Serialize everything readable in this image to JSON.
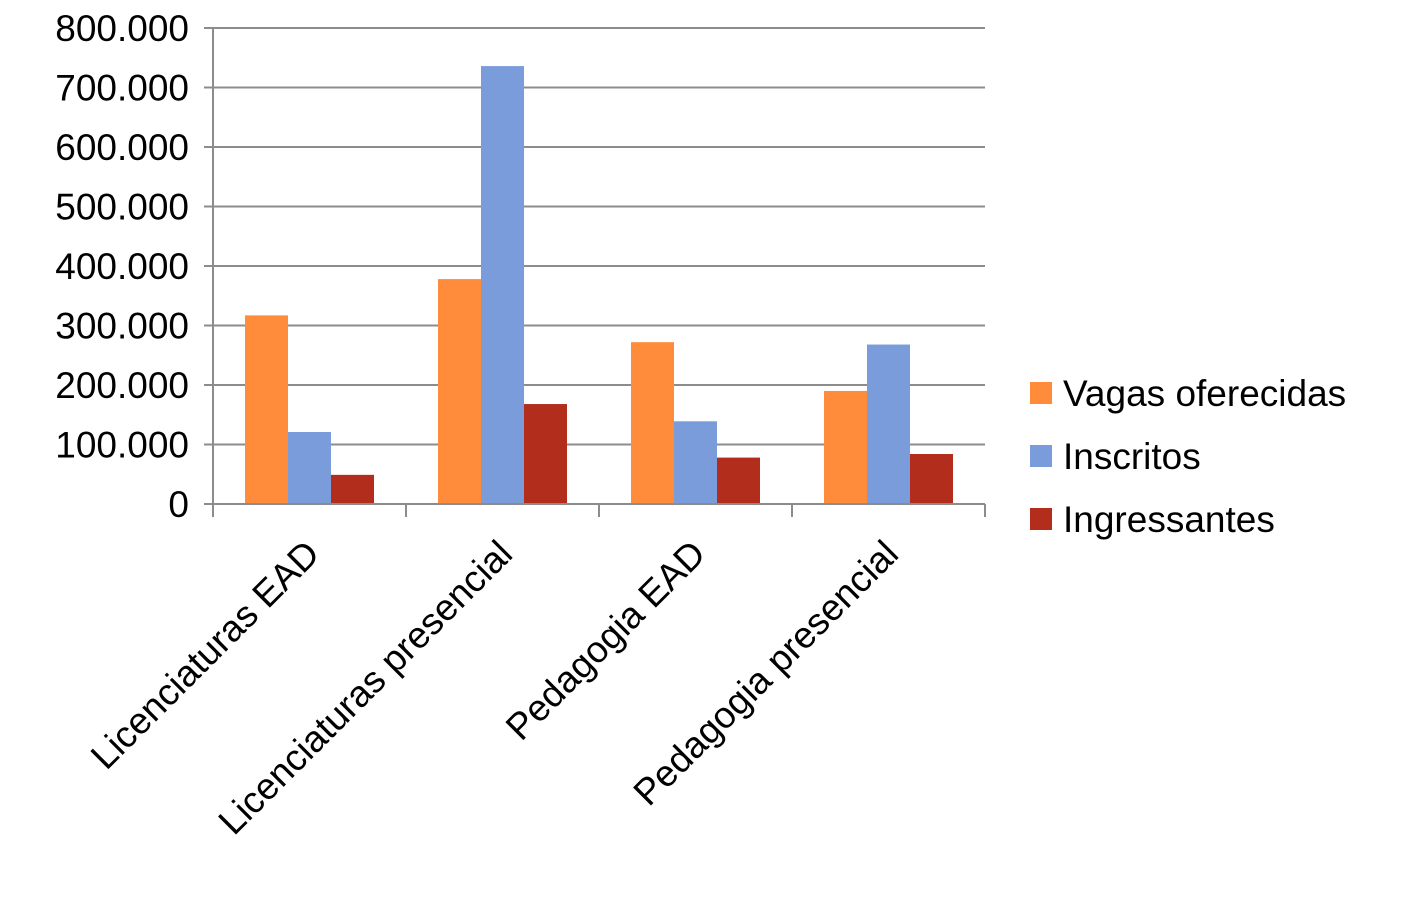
{
  "chart_data": {
    "type": "bar",
    "title": "",
    "xlabel": "",
    "ylabel": "",
    "categories": [
      "Licenciaturas EAD",
      "Licenciaturas presencial",
      "Pedagogia EAD",
      "Pedagogia presencial"
    ],
    "series": [
      {
        "name": "Vagas oferecidas",
        "color": "#FF8C3A",
        "values": [
          317000,
          378000,
          272000,
          190000
        ]
      },
      {
        "name": "Inscritos",
        "color": "#7A9CDB",
        "values": [
          121000,
          736000,
          139000,
          268000
        ]
      },
      {
        "name": "Ingressantes",
        "color": "#B22D1B",
        "values": [
          49000,
          168000,
          78000,
          84000
        ]
      }
    ],
    "ylim": [
      0,
      800000
    ],
    "yticks": [
      0,
      100000,
      200000,
      300000,
      400000,
      500000,
      600000,
      700000,
      800000
    ],
    "ytick_labels": [
      "0",
      "100.000",
      "200.000",
      "300.000",
      "400.000",
      "500.000",
      "600.000",
      "700.000",
      "800.000"
    ],
    "grid": true,
    "legend_position": "right"
  }
}
